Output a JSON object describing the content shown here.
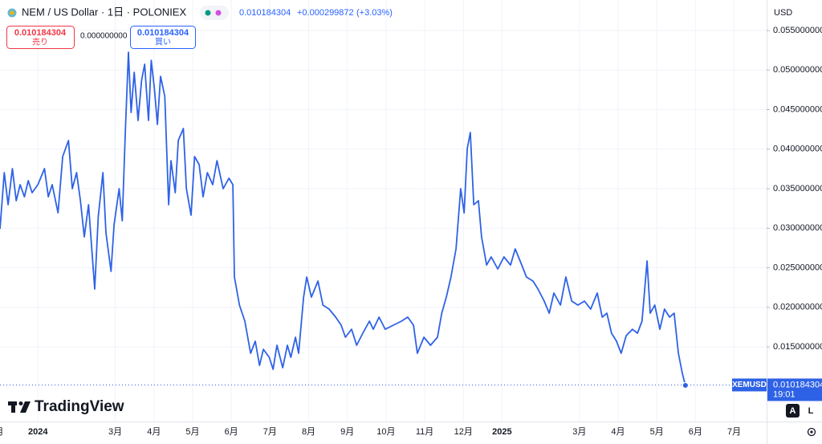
{
  "chart_data": {
    "type": "line",
    "title": "NEM / US Dollar · 1日 · POLONIEX",
    "price": "0.010184304",
    "change": "+0.000299872",
    "change_percent": "(+3.03%)",
    "sell": {
      "price": "0.010184304",
      "label": "売り"
    },
    "spread": "0.000000000",
    "buy": {
      "price": "0.010184304",
      "label": "買い"
    },
    "currency": "USD",
    "symbol": "XEMUSD",
    "last_price": 0.010184304,
    "countdown": "19:01",
    "brand": "TradingView",
    "buttons": [
      "A",
      "L"
    ],
    "color": "#2e62e6",
    "grid": true,
    "x": [
      -0.98,
      -0.87,
      -0.77,
      -0.66,
      -0.56,
      -0.46,
      -0.35,
      -0.25,
      -0.15,
      0,
      0.17,
      0.27,
      0.37,
      0.52,
      0.64,
      0.79,
      0.89,
      1.0,
      1.1,
      1.2,
      1.31,
      1.47,
      1.56,
      1.68,
      1.76,
      1.89,
      1.97,
      2.1,
      2.18,
      2.26,
      2.34,
      2.41,
      2.49,
      2.59,
      2.68,
      2.76,
      2.86,
      2.93,
      3.01,
      3.09,
      3.17,
      3.28,
      3.38,
      3.44,
      3.55,
      3.63,
      3.76,
      3.84,
      3.96,
      4.05,
      4.17,
      4.27,
      4.38,
      4.52,
      4.63,
      4.79,
      4.94,
      5.04,
      5.08,
      5.21,
      5.35,
      5.5,
      5.62,
      5.73,
      5.83,
      5.98,
      6.08,
      6.18,
      6.33,
      6.45,
      6.54,
      6.66,
      6.74,
      6.87,
      6.95,
      7.07,
      7.24,
      7.37,
      7.53,
      7.7,
      7.84,
      7.95,
      8.11,
      8.24,
      8.4,
      8.57,
      8.67,
      8.82,
      8.98,
      9.19,
      9.4,
      9.56,
      9.71,
      9.81,
      9.98,
      10.15,
      10.33,
      10.44,
      10.56,
      10.68,
      10.81,
      10.93,
      11.02,
      11.1,
      11.18,
      11.27,
      11.39,
      11.47,
      11.6,
      11.72,
      11.89,
      12.05,
      12.22,
      12.34,
      12.51,
      12.63,
      12.8,
      12.93,
      13.09,
      13.22,
      13.34,
      13.51,
      13.65,
      13.8,
      13.96,
      14.13,
      14.29,
      14.46,
      14.59,
      14.71,
      14.83,
      14.96,
      15.08,
      15.21,
      15.37,
      15.5,
      15.62,
      15.75,
      15.83,
      15.95,
      16.08,
      16.2,
      16.33,
      16.45,
      16.56,
      16.66,
      16.74
    ],
    "values": [
      0.02992,
      0.03703,
      0.03297,
      0.03754,
      0.03348,
      0.03551,
      0.03398,
      0.03602,
      0.03449,
      0.03551,
      0.03754,
      0.03398,
      0.03551,
      0.03195,
      0.03906,
      0.04109,
      0.035,
      0.03703,
      0.03348,
      0.02891,
      0.03297,
      0.02231,
      0.03145,
      0.03703,
      0.02942,
      0.02454,
      0.03043,
      0.035,
      0.03094,
      0.04211,
      0.05226,
      0.04464,
      0.04972,
      0.04363,
      0.04871,
      0.05074,
      0.04363,
      0.05124,
      0.04769,
      0.04312,
      0.04921,
      0.04668,
      0.03297,
      0.03855,
      0.03449,
      0.04109,
      0.04261,
      0.035,
      0.03165,
      0.03906,
      0.03805,
      0.03398,
      0.03703,
      0.03551,
      0.03855,
      0.035,
      0.03632,
      0.03551,
      0.02383,
      0.02028,
      0.01825,
      0.01419,
      0.01571,
      0.01266,
      0.01469,
      0.01368,
      0.01216,
      0.0152,
      0.01236,
      0.0152,
      0.01368,
      0.01622,
      0.01419,
      0.02129,
      0.02383,
      0.02129,
      0.02332,
      0.02028,
      0.01977,
      0.01876,
      0.01774,
      0.01622,
      0.01723,
      0.0152,
      0.01673,
      0.01825,
      0.01723,
      0.01876,
      0.01723,
      0.01774,
      0.01825,
      0.01876,
      0.01774,
      0.01419,
      0.01622,
      0.0152,
      0.01622,
      0.01926,
      0.02129,
      0.02383,
      0.02739,
      0.035,
      0.03195,
      0.04008,
      0.04211,
      0.03297,
      0.03348,
      0.02891,
      0.02535,
      0.02637,
      0.02485,
      0.02637,
      0.02535,
      0.02739,
      0.02535,
      0.02383,
      0.02332,
      0.02231,
      0.02079,
      0.01926,
      0.0218,
      0.02028,
      0.02383,
      0.02079,
      0.02028,
      0.02079,
      0.01977,
      0.0218,
      0.01876,
      0.01926,
      0.01673,
      0.01571,
      0.01419,
      0.01642,
      0.01723,
      0.01673,
      0.01825,
      0.02586,
      0.01926,
      0.02028,
      0.01723,
      0.01977,
      0.01876,
      0.01926,
      0.01419,
      0.01165,
      0.01013
    ],
    "xlim": [
      -0.98,
      18.84
    ],
    "xticks": [
      {
        "value": -1,
        "label": "月"
      },
      {
        "value": 0,
        "label": "2024"
      },
      {
        "value": 2,
        "label": "3月"
      },
      {
        "value": 3,
        "label": "4月"
      },
      {
        "value": 4,
        "label": "5月"
      },
      {
        "value": 5,
        "label": "6月"
      },
      {
        "value": 6,
        "label": "7月"
      },
      {
        "value": 7,
        "label": "8月"
      },
      {
        "value": 8,
        "label": "9月"
      },
      {
        "value": 9,
        "label": "10月"
      },
      {
        "value": 10,
        "label": "11月"
      },
      {
        "value": 11,
        "label": "12月"
      },
      {
        "value": 12,
        "label": "2025"
      },
      {
        "value": 14,
        "label": "3月"
      },
      {
        "value": 15,
        "label": "4月"
      },
      {
        "value": 16,
        "label": "5月"
      },
      {
        "value": 17,
        "label": "6月"
      },
      {
        "value": 18,
        "label": "7月"
      }
    ],
    "ylim": [
      0.00556,
      0.05886
    ],
    "yticks": [
      {
        "value": 0.015,
        "label": "0.015000000"
      },
      {
        "value": 0.02,
        "label": "0.020000000"
      },
      {
        "value": 0.025,
        "label": "0.025000000"
      },
      {
        "value": 0.03,
        "label": "0.030000000"
      },
      {
        "value": 0.035,
        "label": "0.035000000"
      },
      {
        "value": 0.04,
        "label": "0.040000000"
      },
      {
        "value": 0.045,
        "label": "0.045000000"
      },
      {
        "value": 0.05,
        "label": "0.050000000"
      },
      {
        "value": 0.055,
        "label": "0.055000000"
      }
    ]
  }
}
